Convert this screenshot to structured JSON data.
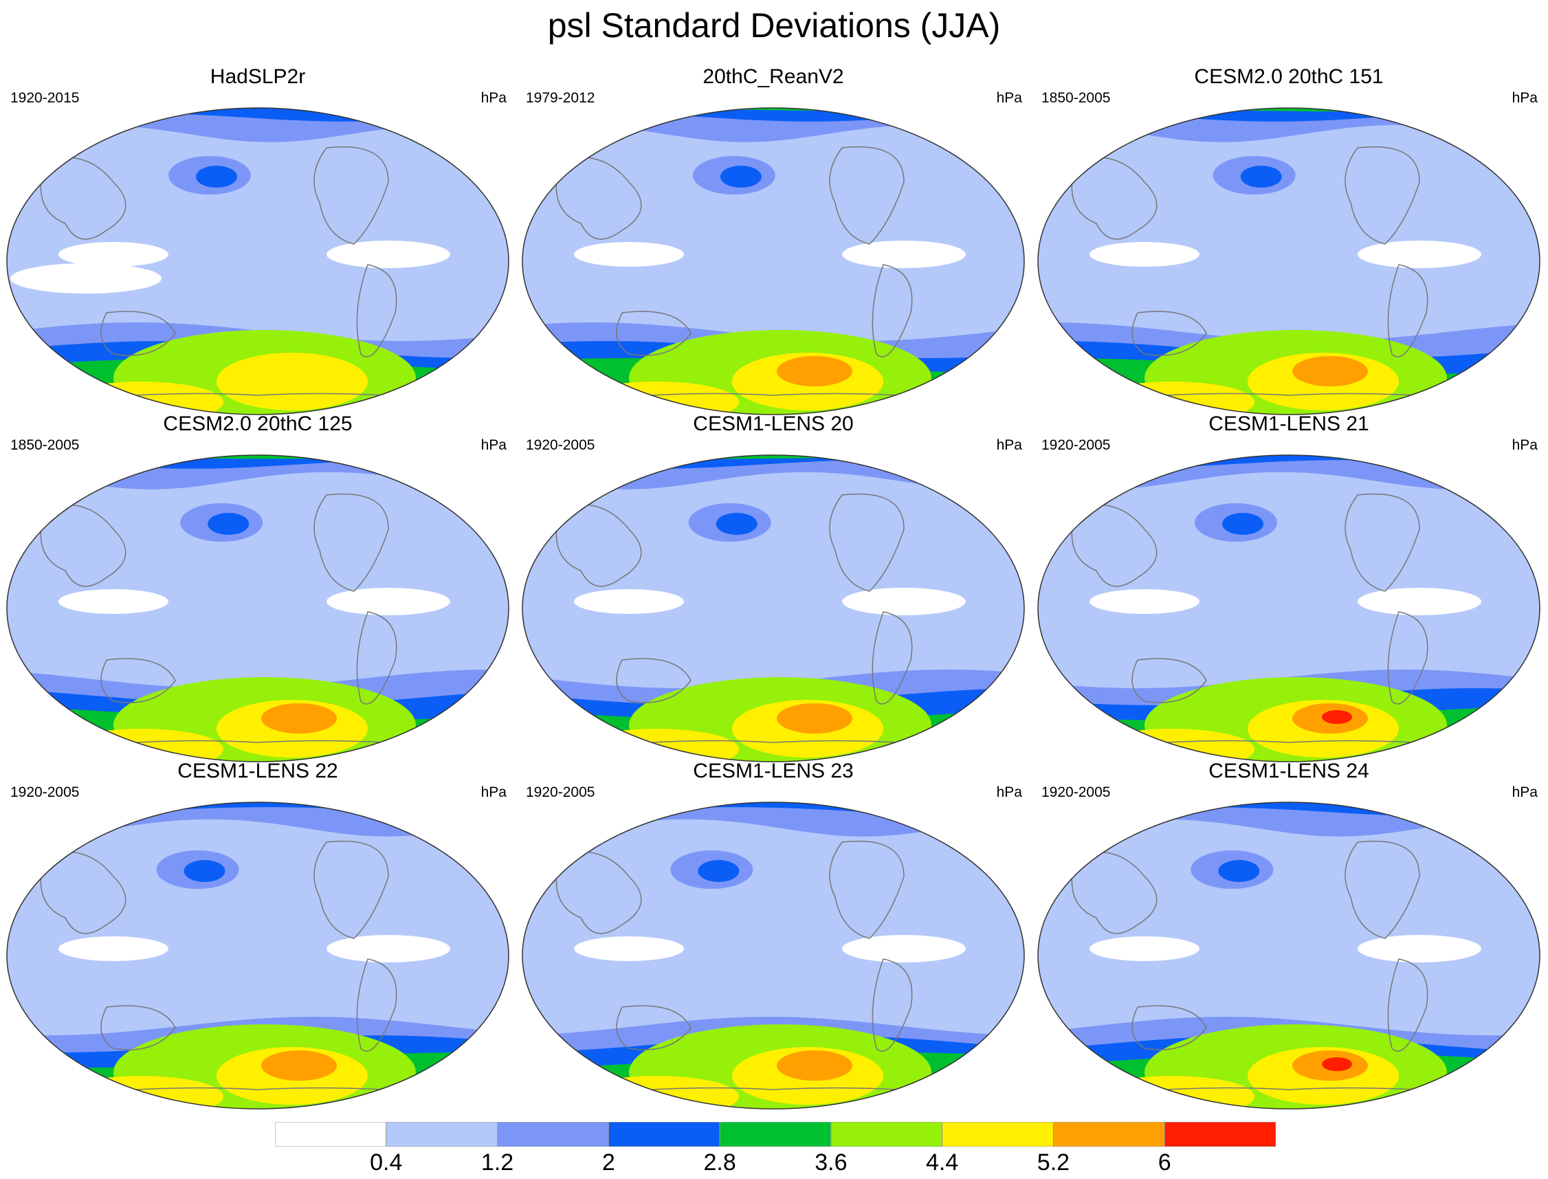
{
  "title": "psl Standard Deviations (JJA)",
  "panels": [
    {
      "title": "HadSLP2r",
      "years": "1920-2015",
      "units": "hPa"
    },
    {
      "title": "20thC_ReanV2",
      "years": "1979-2012",
      "units": "hPa"
    },
    {
      "title": "CESM2.0 20thC 151",
      "years": "1850-2005",
      "units": "hPa"
    },
    {
      "title": "CESM2.0 20thC 125",
      "years": "1850-2005",
      "units": "hPa"
    },
    {
      "title": "CESM1-LENS 20",
      "years": "1920-2005",
      "units": "hPa"
    },
    {
      "title": "CESM1-LENS 21",
      "years": "1920-2005",
      "units": "hPa"
    },
    {
      "title": "CESM1-LENS 22",
      "years": "1920-2005",
      "units": "hPa"
    },
    {
      "title": "CESM1-LENS 23",
      "years": "1920-2005",
      "units": "hPa"
    },
    {
      "title": "CESM1-LENS 24",
      "years": "1920-2005",
      "units": "hPa"
    }
  ],
  "colorbar": {
    "labels": [
      "0.4",
      "1.2",
      "2",
      "2.8",
      "3.6",
      "4.4",
      "5.2",
      "6"
    ],
    "colors": [
      "#ffffff",
      "#b4c8fa",
      "#7c96f8",
      "#0a5ef5",
      "#00c030",
      "#96f00a",
      "#fff000",
      "#ffa000",
      "#ff1e00"
    ]
  }
}
